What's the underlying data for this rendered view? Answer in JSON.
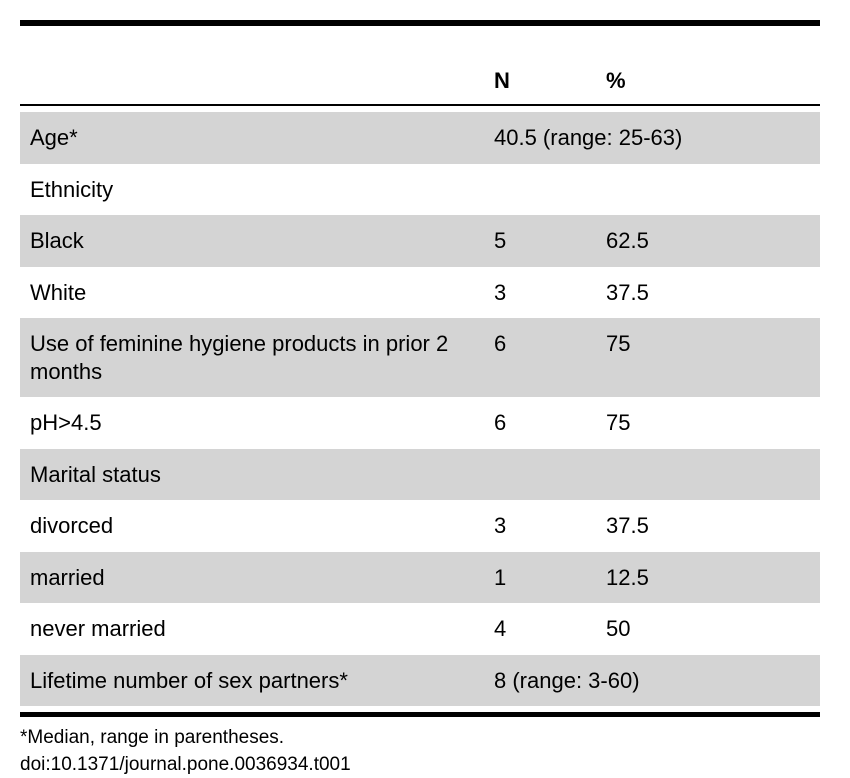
{
  "columns": {
    "label": "",
    "n": "N",
    "pct": "%"
  },
  "rows": [
    {
      "type": "span",
      "shaded": true,
      "label": "Age*",
      "value": "40.5 (range: 25-63)"
    },
    {
      "type": "section",
      "shaded": false,
      "label": "Ethnicity"
    },
    {
      "type": "data",
      "shaded": true,
      "label": "Black",
      "n": "5",
      "pct": "62.5"
    },
    {
      "type": "data",
      "shaded": false,
      "label": "White",
      "n": "3",
      "pct": "37.5"
    },
    {
      "type": "data",
      "shaded": true,
      "label": "Use of feminine hygiene products in prior 2 months",
      "n": "6",
      "pct": "75"
    },
    {
      "type": "data",
      "shaded": false,
      "label": "pH>4.5",
      "n": "6",
      "pct": "75"
    },
    {
      "type": "section",
      "shaded": true,
      "label": "Marital status"
    },
    {
      "type": "data",
      "shaded": false,
      "label": "divorced",
      "n": "3",
      "pct": "37.5"
    },
    {
      "type": "data",
      "shaded": true,
      "label": "married",
      "n": "1",
      "pct": "12.5"
    },
    {
      "type": "data",
      "shaded": false,
      "label": "never married",
      "n": "4",
      "pct": "50"
    },
    {
      "type": "data",
      "shaded": true,
      "label": "Lifetime number of sex partners*",
      "n": "8 (range: 3-60)",
      "pct": ""
    }
  ],
  "footnote": "*Median, range in parentheses.",
  "doi": "doi:10.1371/journal.pone.0036934.t001"
}
